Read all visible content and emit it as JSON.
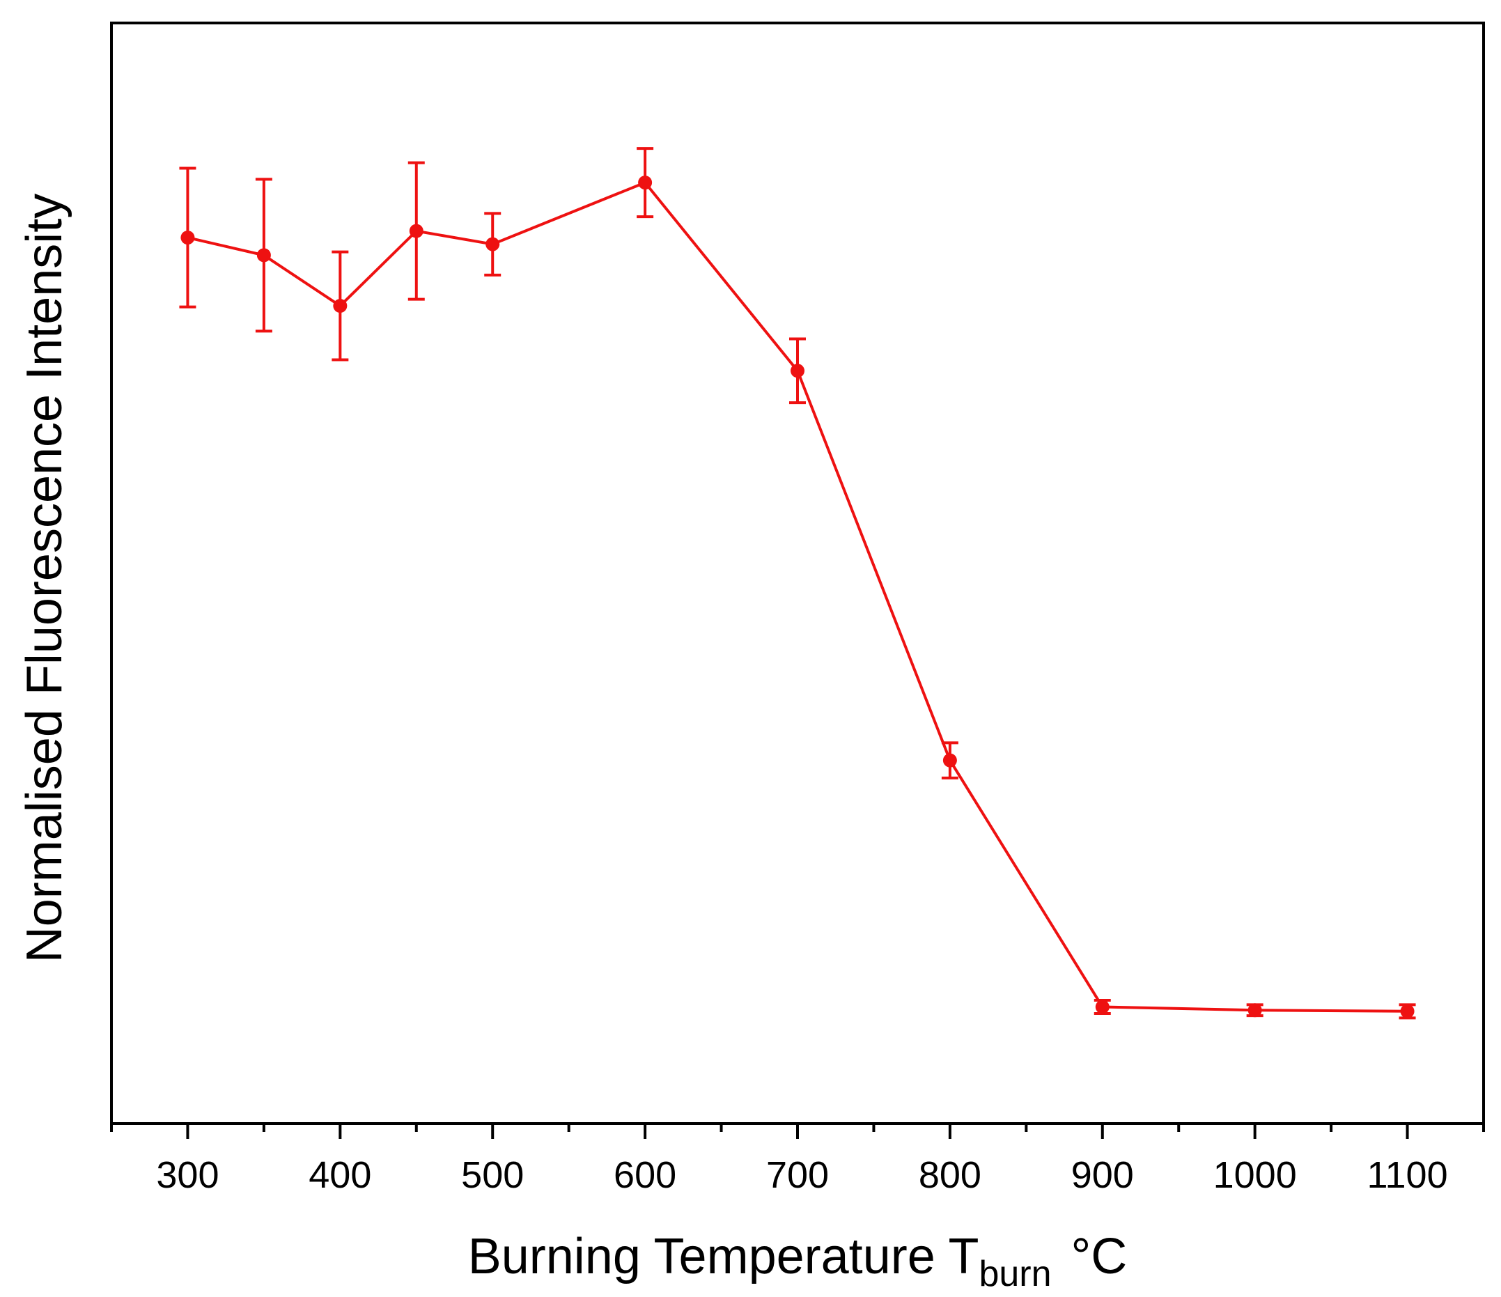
{
  "chart_data": {
    "type": "line",
    "title": "",
    "xlabel_main": "Burning Temperature T",
    "xlabel_sub": "burn",
    "xlabel_unit": "°C",
    "ylabel": "Normalised Fluorescence Intensity",
    "xlim": [
      250,
      1150
    ],
    "ylim": [
      0,
      1.0
    ],
    "x_ticks": [
      300,
      400,
      500,
      600,
      700,
      800,
      900,
      1000,
      1100
    ],
    "x_tick_labels": [
      "300",
      "400",
      "500",
      "600",
      "700",
      "800",
      "900",
      "1000",
      "1100"
    ],
    "x_minor_step": 50,
    "y_ticks_shown": false,
    "grid": false,
    "series": [
      {
        "name": "Normalised Fluorescence Intensity",
        "color": "#ee1111",
        "x": [
          300,
          350,
          400,
          450,
          500,
          600,
          700,
          800,
          900,
          1000,
          1100
        ],
        "y": [
          0.805,
          0.789,
          0.743,
          0.811,
          0.799,
          0.855,
          0.684,
          0.33,
          0.106,
          0.103,
          0.102
        ],
        "err": [
          0.063,
          0.069,
          0.049,
          0.062,
          0.028,
          0.031,
          0.029,
          0.016,
          0.006,
          0.005,
          0.006
        ]
      }
    ]
  }
}
